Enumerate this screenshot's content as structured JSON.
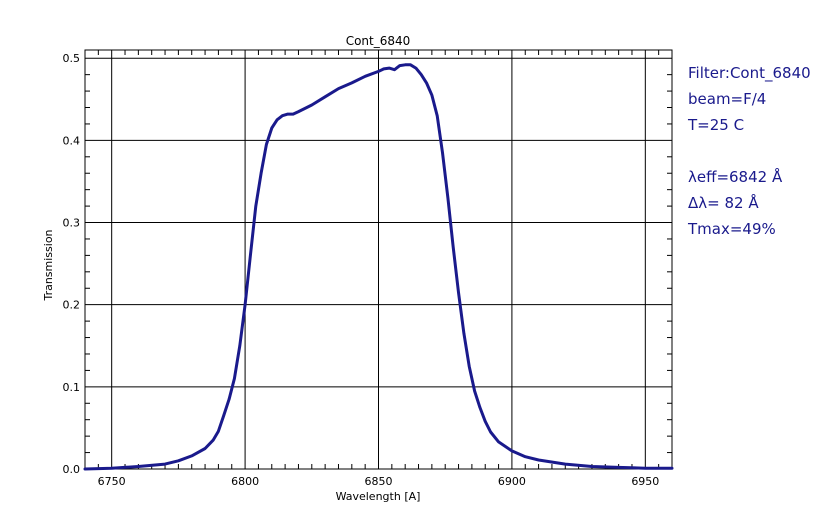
{
  "chart_data": {
    "type": "line",
    "title": "Cont_6840",
    "xlabel": "Wavelength [A]",
    "ylabel": "Transmission",
    "xlim": [
      6740,
      6960
    ],
    "ylim": [
      0.0,
      0.51
    ],
    "x_ticks": [
      6750,
      6800,
      6850,
      6900,
      6950
    ],
    "x_tick_labels": [
      "6750",
      "6800",
      "6850",
      "6900",
      "6950"
    ],
    "y_ticks": [
      0.0,
      0.1,
      0.2,
      0.3,
      0.4,
      0.5
    ],
    "y_tick_labels": [
      "0.0",
      "0.1",
      "0.2",
      "0.3",
      "0.4",
      "0.5"
    ],
    "grid": true,
    "series_color": "#1a1a8c",
    "series": [
      {
        "x": [
          6740,
          6750,
          6760,
          6770,
          6775,
          6780,
          6785,
          6788,
          6790,
          6792,
          6794,
          6796,
          6798,
          6800,
          6802,
          6804,
          6806,
          6808,
          6810,
          6812,
          6814,
          6816,
          6818,
          6820,
          6825,
          6830,
          6835,
          6840,
          6845,
          6850,
          6852,
          6854,
          6856,
          6858,
          6860,
          6862,
          6864,
          6866,
          6868,
          6870,
          6872,
          6874,
          6876,
          6878,
          6880,
          6882,
          6884,
          6886,
          6888,
          6890,
          6892,
          6895,
          6900,
          6905,
          6910,
          6920,
          6930,
          6940,
          6950,
          6960
        ],
        "y": [
          0.0,
          0.001,
          0.003,
          0.006,
          0.01,
          0.016,
          0.025,
          0.035,
          0.046,
          0.065,
          0.085,
          0.11,
          0.15,
          0.2,
          0.26,
          0.32,
          0.36,
          0.395,
          0.415,
          0.425,
          0.43,
          0.432,
          0.432,
          0.435,
          0.443,
          0.453,
          0.463,
          0.47,
          0.478,
          0.484,
          0.487,
          0.488,
          0.486,
          0.491,
          0.492,
          0.492,
          0.488,
          0.48,
          0.47,
          0.455,
          0.43,
          0.385,
          0.33,
          0.27,
          0.215,
          0.165,
          0.125,
          0.095,
          0.075,
          0.058,
          0.045,
          0.033,
          0.022,
          0.015,
          0.011,
          0.006,
          0.003,
          0.002,
          0.001,
          0.001
        ]
      }
    ]
  },
  "info": {
    "filter": "Filter:Cont_6840",
    "beam": "beam=F/4",
    "temp": "T=25 C",
    "lambda_eff": "λeff=6842 Å",
    "delta_lambda": "Δλ= 82 Å",
    "tmax": "Tmax=49%"
  }
}
